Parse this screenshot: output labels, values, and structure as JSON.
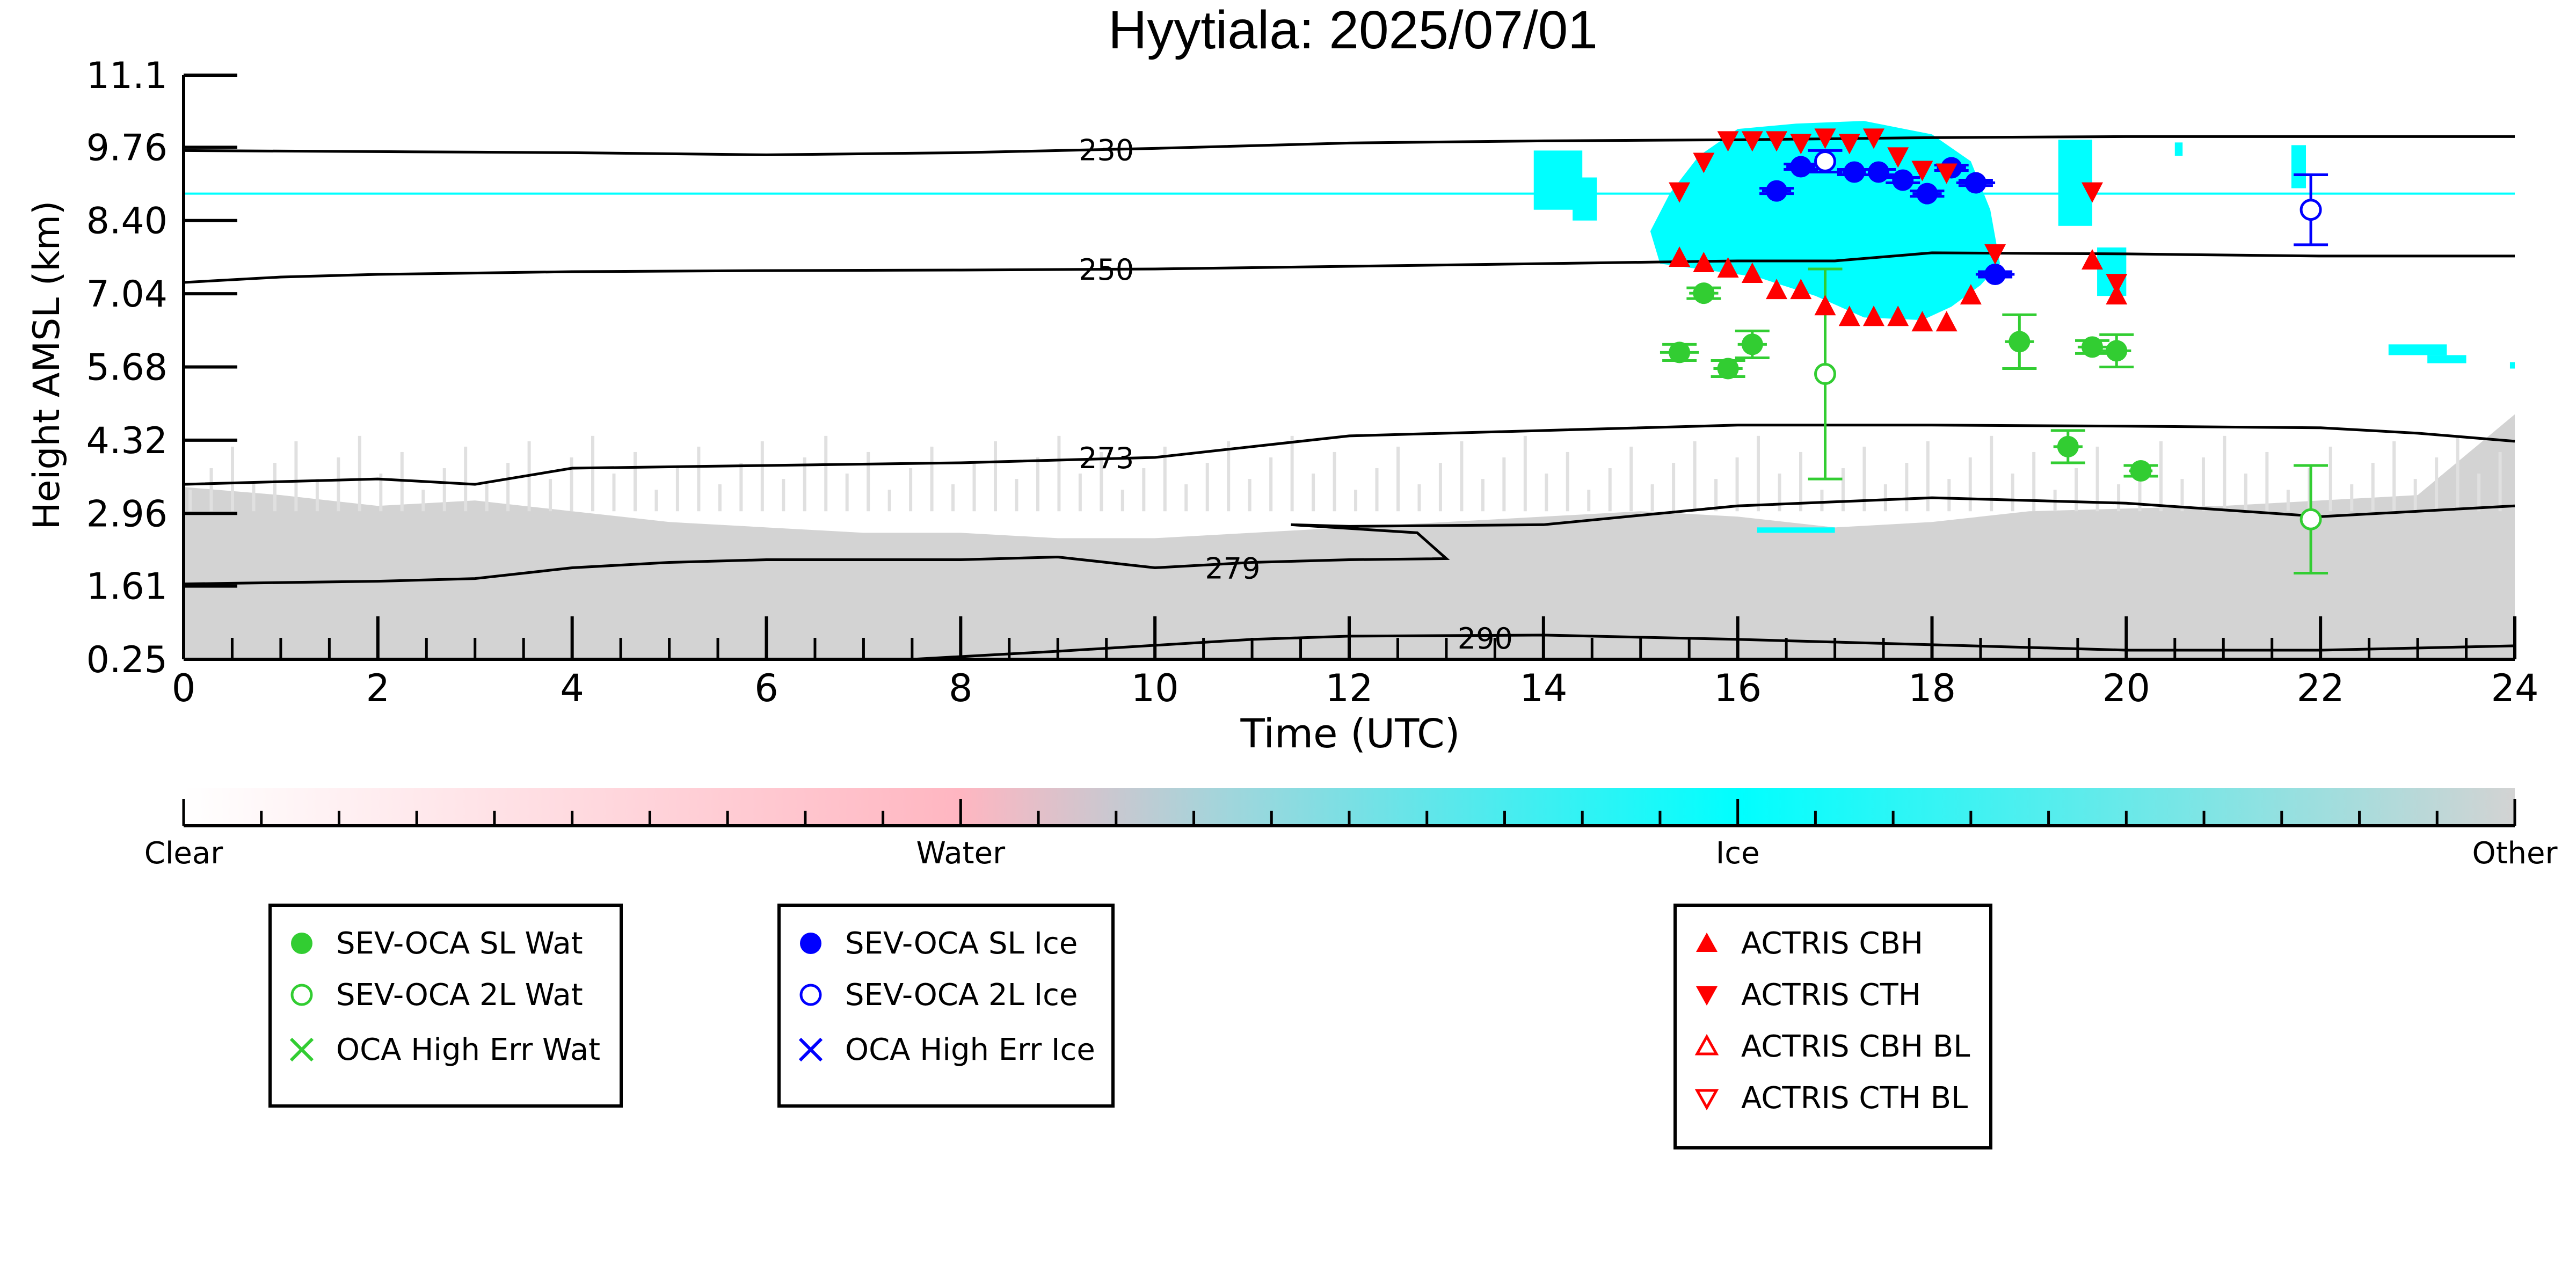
{
  "chart_data": {
    "type": "scatter",
    "title": "Hyytiala: 2025/07/01",
    "xlabel": "Time (UTC)",
    "ylabel": "Height AMSL (km)",
    "xlim": [
      0,
      24
    ],
    "ylim": [
      0.25,
      11.1
    ],
    "xticks": [
      "0",
      "2",
      "4",
      "6",
      "8",
      "10",
      "12",
      "14",
      "16",
      "18",
      "20",
      "22",
      "24"
    ],
    "yticks": [
      "0.25",
      "1.61",
      "2.96",
      "4.32",
      "5.68",
      "7.04",
      "8.40",
      "9.76",
      "11.1"
    ],
    "colorbar": {
      "labels": [
        "Clear",
        "Water",
        "Ice",
        "Other"
      ],
      "colors": [
        "#ffffff",
        "#ffb6c1",
        "#00ffff",
        "#d3d3d3"
      ]
    },
    "contours": [
      {
        "label": "230",
        "x": [
          0,
          2,
          4,
          6,
          8,
          10,
          12,
          14,
          16,
          18,
          20,
          22,
          24
        ],
        "y": [
          9.7,
          9.68,
          9.66,
          9.62,
          9.66,
          9.74,
          9.84,
          9.88,
          9.9,
          9.94,
          9.96,
          9.96,
          9.96
        ]
      },
      {
        "label": "250",
        "x": [
          0,
          1,
          2,
          4,
          6,
          8,
          10,
          12,
          14,
          16,
          17,
          18,
          20,
          22,
          24
        ],
        "y": [
          7.25,
          7.35,
          7.4,
          7.45,
          7.47,
          7.48,
          7.5,
          7.55,
          7.6,
          7.65,
          7.65,
          7.8,
          7.78,
          7.74,
          7.74
        ]
      },
      {
        "label": "273",
        "x": [
          0,
          2,
          3,
          4,
          6,
          8,
          10,
          12,
          14,
          16,
          18,
          20,
          22,
          23,
          24
        ],
        "y": [
          3.5,
          3.6,
          3.5,
          3.8,
          3.85,
          3.9,
          4.0,
          4.4,
          4.5,
          4.6,
          4.6,
          4.58,
          4.55,
          4.45,
          4.3
        ]
      },
      {
        "label": "279",
        "x": [
          0,
          2,
          3,
          4,
          5,
          6,
          8,
          9,
          10,
          11,
          12,
          13,
          12.7,
          11.4,
          12,
          14,
          16,
          18,
          20,
          22,
          24
        ],
        "y": [
          1.65,
          1.7,
          1.75,
          1.95,
          2.05,
          2.1,
          2.1,
          2.15,
          1.95,
          2.05,
          2.1,
          2.12,
          2.6,
          2.75,
          2.72,
          2.75,
          3.1,
          3.25,
          3.15,
          2.9,
          3.1
        ]
      },
      {
        "label": "290",
        "x": [
          7.5,
          9,
          11,
          12,
          14,
          16,
          18,
          20,
          22,
          24
        ],
        "y": [
          0.25,
          0.4,
          0.62,
          0.68,
          0.7,
          0.62,
          0.52,
          0.42,
          0.42,
          0.5
        ]
      }
    ],
    "series": [
      {
        "name": "SEV-OCA SL Wat",
        "marker": "filled-circle",
        "color": "#32cd32",
        "x": [
          15.4,
          15.65,
          15.9,
          16.15,
          18.9,
          19.4,
          19.65,
          19.9,
          20.15
        ],
        "y": [
          5.95,
          7.05,
          5.65,
          6.1,
          6.15,
          4.2,
          6.05,
          5.98,
          3.75
        ],
        "yerr": [
          0.15,
          0.1,
          0.15,
          0.25,
          0.5,
          0.3,
          0.12,
          0.3,
          0.1
        ],
        "xerr": [
          0.2,
          0.15,
          0.15,
          0.15,
          0.15,
          0.15,
          0.15,
          0.15,
          0.12
        ]
      },
      {
        "name": "SEV-OCA 2L Wat",
        "marker": "open-circle",
        "color": "#32cd32",
        "x": [
          16.9,
          21.9
        ],
        "y": [
          5.55,
          2.85
        ],
        "yerr": [
          1.95,
          1.0
        ],
        "xerr": [
          0,
          0
        ]
      },
      {
        "name": "OCA High Err Wat",
        "marker": "x",
        "color": "#32cd32",
        "x": [],
        "y": []
      },
      {
        "name": "SEV-OCA SL Ice",
        "marker": "filled-circle",
        "color": "#0000ff",
        "x": [
          16.4,
          16.65,
          17.2,
          17.45,
          17.7,
          17.95,
          18.2,
          18.45,
          18.65
        ],
        "y": [
          8.95,
          9.4,
          9.3,
          9.3,
          9.15,
          8.9,
          9.38,
          9.1,
          7.4
        ],
        "yerr": [
          0.05,
          0.05,
          0.05,
          0.05,
          0.05,
          0.05,
          0.05,
          0.05,
          0.05
        ],
        "xerr": [
          0.15,
          0.15,
          0.12,
          0.1,
          0.1,
          0.15,
          0.15,
          0.2,
          0.2
        ]
      },
      {
        "name": "SEV-OCA 2L Ice",
        "marker": "open-circle",
        "color": "#0000ff",
        "x": [
          16.9,
          21.9
        ],
        "y": [
          9.5,
          8.6
        ],
        "yerr": [
          0.2,
          0.65
        ],
        "xerr": [
          0,
          0
        ]
      },
      {
        "name": "OCA High Err Ice",
        "marker": "x",
        "color": "#0000ff",
        "x": [],
        "y": []
      },
      {
        "name": "ACTRIS CBH",
        "marker": "filled-triangle-up",
        "color": "#ff0000",
        "x": [
          15.4,
          15.65,
          15.9,
          16.15,
          16.4,
          16.65,
          16.9,
          17.15,
          17.4,
          17.65,
          17.9,
          18.15,
          18.4,
          19.65,
          19.9
        ],
        "y": [
          7.7,
          7.6,
          7.5,
          7.4,
          7.1,
          7.1,
          6.8,
          6.6,
          6.6,
          6.6,
          6.5,
          6.5,
          7.0,
          7.65,
          7.0
        ]
      },
      {
        "name": "ACTRIS CTH",
        "marker": "filled-triangle-down",
        "color": "#ff0000",
        "x": [
          15.4,
          15.65,
          15.9,
          16.15,
          16.4,
          16.65,
          16.9,
          17.15,
          17.4,
          17.65,
          17.9,
          18.15,
          18.65,
          19.65,
          19.9
        ],
        "y": [
          8.95,
          9.5,
          9.9,
          9.9,
          9.9,
          9.85,
          9.95,
          9.85,
          9.95,
          9.6,
          9.35,
          9.3,
          7.8,
          8.95,
          7.25
        ]
      },
      {
        "name": "ACTRIS CBH BL",
        "marker": "open-triangle-up",
        "color": "#ff0000",
        "x": [],
        "y": []
      },
      {
        "name": "ACTRIS CTH BL",
        "marker": "open-triangle-down",
        "color": "#ff0000",
        "x": [],
        "y": []
      }
    ],
    "legends": [
      {
        "items": [
          0,
          1,
          2
        ]
      },
      {
        "items": [
          3,
          4,
          5
        ]
      },
      {
        "items": [
          6,
          7,
          8,
          9
        ]
      }
    ]
  }
}
